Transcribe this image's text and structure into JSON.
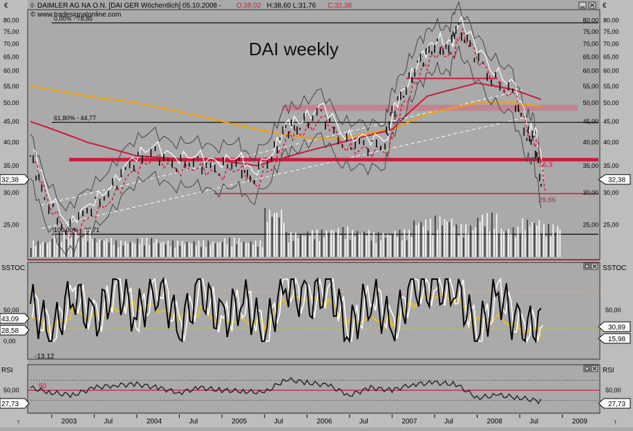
{
  "header": {
    "diamond_icon": "diamond-icon",
    "title": "DAIMLER AG NA O.N. [DAI GER  Wöchentlich] 05.10.2008 -",
    "open_label": "O:38,02",
    "hl_label": "H:38,60 L:31,76",
    "close_label": "C:32,38",
    "copyright": "© www.tradesignalonline.com",
    "annotation": "DAI weekly",
    "currency_symbol": "€"
  },
  "colors": {
    "background": "#a9a9a9",
    "red": "#cc1a3a",
    "orange": "#f2a000",
    "yellow": "#e8c020",
    "white": "#ffffff",
    "black": "#000000",
    "pink_band": "#c87a8a"
  },
  "window_controls": {
    "main": [
      "minimize-icon",
      "close-icon"
    ],
    "stoch": [
      "maximize-icon",
      "close-icon"
    ],
    "rsi": [
      "maximize-icon",
      "close-icon"
    ]
  },
  "price_panel": {
    "y_ticks": [
      "80,00",
      "75,00",
      "70,00",
      "65,00",
      "60,00",
      "55,00",
      "50,00",
      "45,00",
      "40,00",
      "35,00",
      "30,00",
      "25,00"
    ],
    "last_price_label": "32,38",
    "fib_levels": [
      {
        "label": "0,00% - 78,85",
        "value": 78.85
      },
      {
        "label": "61,80% - 44,77",
        "value": 44.77
      },
      {
        "label": "100,00% - 23,71",
        "value": 23.71
      }
    ],
    "support_labels": [
      {
        "label": "36,3",
        "value": 36.3
      },
      {
        "label": "29,86",
        "value": 29.86
      }
    ]
  },
  "stoch_panel": {
    "name": "SSTOC",
    "y_ticks": [
      "50,00",
      "0,00"
    ],
    "left_values": [
      "43,09",
      "28,58"
    ],
    "min_label": "-13,12",
    "right_values": [
      "30,89",
      "15,98"
    ]
  },
  "rsi_panel": {
    "name": "RSI",
    "level_label": "50",
    "y_ticks": [
      "50,00",
      "0,00"
    ],
    "left_value": "27,73",
    "right_value": "27,73"
  },
  "x_axis": {
    "labels": [
      "2003",
      "Jul",
      "2004",
      "Jul",
      "2005",
      "Jul",
      "2006",
      "Jul",
      "2007",
      "Jul",
      "2008",
      "Jul",
      "2009"
    ]
  },
  "chart_data": {
    "type": "line",
    "title": "DAIMLER AG NA O.N. [DAI GER  Wöchentlich] 05.10.2008",
    "ylim": [
      21,
      83
    ],
    "x_range": [
      "2002-10",
      "2009-06"
    ],
    "close_series": {
      "x": [
        "2002-10",
        "2002-12",
        "2003-03",
        "2003-06",
        "2003-09",
        "2003-12",
        "2004-03",
        "2004-06",
        "2004-09",
        "2004-12",
        "2005-03",
        "2005-05",
        "2005-08",
        "2005-10",
        "2005-12",
        "2006-03",
        "2006-06",
        "2006-09",
        "2006-12",
        "2007-01",
        "2007-03",
        "2007-05",
        "2007-07",
        "2007-09",
        "2007-10",
        "2007-12",
        "2008-03",
        "2008-06",
        "2008-08",
        "2008-09",
        "2008-10"
      ],
      "y": [
        37,
        29,
        24,
        27,
        30,
        35,
        38,
        35,
        36,
        34,
        36,
        32,
        37,
        43,
        44,
        47,
        40,
        39,
        40,
        47,
        55,
        63,
        70,
        66,
        78,
        68,
        58,
        52,
        42,
        40,
        32.38
      ]
    },
    "sma_red": {
      "x": [
        "2002-10",
        "2003-06",
        "2004-01",
        "2004-06",
        "2005-01",
        "2005-06",
        "2006-01",
        "2006-06",
        "2007-01",
        "2007-06",
        "2008-01",
        "2008-06",
        "2008-10"
      ],
      "y": [
        45,
        40,
        37,
        36.5,
        36,
        35,
        38,
        40,
        43,
        52,
        56,
        54,
        51
      ]
    },
    "sma_orange": {
      "x": [
        "2002-10",
        "2003-06",
        "2004-01",
        "2004-06",
        "2005-01",
        "2005-06",
        "2006-01",
        "2006-06",
        "2007-01",
        "2007-06",
        "2008-01",
        "2008-06",
        "2008-10"
      ],
      "y": [
        55,
        52,
        50,
        48,
        45,
        43,
        41,
        41,
        43,
        47,
        50,
        50,
        49
      ]
    },
    "volume": {
      "x": [
        "2002-10",
        "2003-01",
        "2003-04",
        "2003-07",
        "2003-10",
        "2004-01",
        "2004-04",
        "2004-07",
        "2004-10",
        "2005-01",
        "2005-04",
        "2005-07",
        "2005-10",
        "2006-01",
        "2006-04",
        "2006-07",
        "2006-10",
        "2007-01",
        "2007-04",
        "2007-07",
        "2007-10",
        "2008-01",
        "2008-04",
        "2008-07",
        "2008-10"
      ],
      "y": [
        0.3,
        0.45,
        0.5,
        0.35,
        0.3,
        0.35,
        0.3,
        0.3,
        0.3,
        0.35,
        0.3,
        0.9,
        0.45,
        0.5,
        0.55,
        0.5,
        0.45,
        0.5,
        0.7,
        0.75,
        0.6,
        0.8,
        0.55,
        0.7,
        0.6
      ]
    },
    "stochastic": {
      "x": [
        "2002-10",
        "2003-01",
        "2003-04",
        "2003-07",
        "2003-10",
        "2004-01",
        "2004-04",
        "2004-07",
        "2004-10",
        "2005-01",
        "2005-04",
        "2005-07",
        "2005-10",
        "2006-01",
        "2006-04",
        "2006-07",
        "2006-10",
        "2007-01",
        "2007-04",
        "2007-07",
        "2007-10",
        "2008-01",
        "2008-04",
        "2008-07",
        "2008-10"
      ],
      "fast": [
        60,
        10,
        80,
        30,
        90,
        40,
        95,
        20,
        85,
        30,
        70,
        10,
        95,
        60,
        90,
        15,
        80,
        20,
        90,
        85,
        90,
        10,
        80,
        15,
        30.89
      ],
      "slow": [
        45,
        20,
        60,
        55,
        70,
        70,
        60,
        40,
        60,
        45,
        50,
        35,
        80,
        80,
        75,
        40,
        55,
        40,
        75,
        85,
        80,
        40,
        55,
        30,
        15.98
      ]
    },
    "rsi": {
      "x": [
        "2002-10",
        "2003-01",
        "2003-04",
        "2003-07",
        "2003-10",
        "2004-01",
        "2004-04",
        "2004-07",
        "2004-10",
        "2005-01",
        "2005-04",
        "2005-07",
        "2005-10",
        "2006-01",
        "2006-04",
        "2006-07",
        "2006-10",
        "2007-01",
        "2007-04",
        "2007-07",
        "2007-10",
        "2008-01",
        "2008-04",
        "2008-07",
        "2008-10"
      ],
      "y": [
        55,
        45,
        40,
        55,
        60,
        62,
        55,
        45,
        55,
        50,
        48,
        45,
        72,
        65,
        60,
        40,
        55,
        50,
        62,
        65,
        62,
        35,
        40,
        35,
        27.73
      ]
    }
  }
}
